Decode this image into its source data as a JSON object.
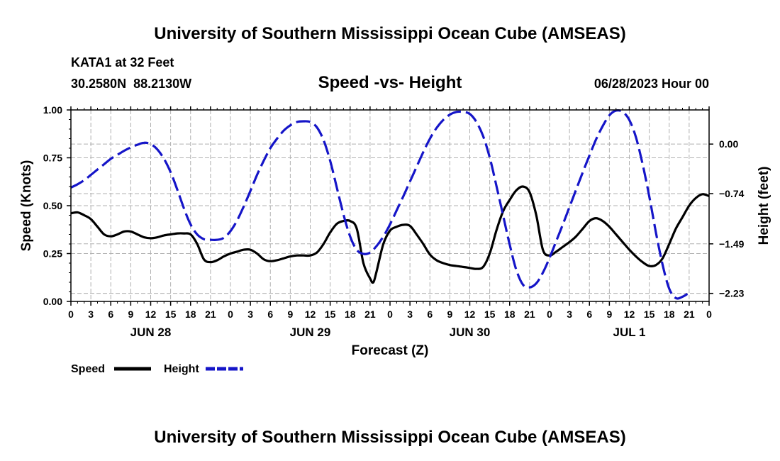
{
  "header": {
    "title": "University of Southern Mississippi Ocean Cube (AMSEAS)",
    "station": "KATA1 at 32 Feet",
    "coords": "30.2580N  88.2130W",
    "subtitle": "Speed -vs- Height",
    "date": "06/28/2023 Hour 00"
  },
  "footer": {
    "title": "University of Southern Mississippi Ocean Cube (AMSEAS)"
  },
  "chart_data": {
    "type": "line",
    "title": "Speed -vs- Height",
    "xlabel": "Forecast (Z)",
    "ylabel": "Speed (Knots)",
    "y2label": "Height (feet)",
    "xlim": [
      0,
      96
    ],
    "ylim": [
      0,
      1
    ],
    "y2lim": [
      -2.35,
      0.51
    ],
    "grid": true,
    "x_ticks": [
      0,
      3,
      6,
      9,
      12,
      15,
      18,
      21,
      24,
      27,
      30,
      33,
      36,
      39,
      42,
      45,
      48,
      51,
      54,
      57,
      60,
      63,
      66,
      69,
      72,
      75,
      78,
      81,
      84,
      87,
      90,
      93,
      96
    ],
    "x_tick_labels": [
      "0",
      "3",
      "6",
      "9",
      "12",
      "15",
      "18",
      "21",
      "0",
      "3",
      "6",
      "9",
      "12",
      "15",
      "18",
      "21",
      "0",
      "3",
      "6",
      "9",
      "12",
      "15",
      "18",
      "21",
      "0",
      "3",
      "6",
      "9",
      "12",
      "15",
      "18",
      "21",
      "0"
    ],
    "date_labels": [
      {
        "x": 12,
        "label": "JUN 28"
      },
      {
        "x": 36,
        "label": "JUN 29"
      },
      {
        "x": 60,
        "label": "JUN 30"
      },
      {
        "x": 84,
        "label": "JUL 1"
      }
    ],
    "y_ticks": [
      0,
      0.25,
      0.5,
      0.75,
      1
    ],
    "y_tick_labels": [
      "0.00",
      "0.25",
      "0.50",
      "0.75",
      "1.00"
    ],
    "y2_ticks": [
      0,
      -0.74,
      -1.49,
      -2.23
    ],
    "y2_tick_labels": [
      "0.00",
      "-0.74",
      "-1.49",
      "-2.23"
    ],
    "legend_position": "bottom-left",
    "series": [
      {
        "name": "Speed",
        "axis": "left",
        "color": "#000000",
        "dash": "solid",
        "points": [
          [
            0,
            0.46
          ],
          [
            1,
            0.465
          ],
          [
            2,
            0.45
          ],
          [
            3,
            0.43
          ],
          [
            4,
            0.39
          ],
          [
            5,
            0.35
          ],
          [
            6,
            0.34
          ],
          [
            7,
            0.35
          ],
          [
            8,
            0.365
          ],
          [
            9,
            0.365
          ],
          [
            10,
            0.35
          ],
          [
            11,
            0.335
          ],
          [
            12,
            0.33
          ],
          [
            13,
            0.335
          ],
          [
            14,
            0.345
          ],
          [
            15,
            0.35
          ],
          [
            16,
            0.355
          ],
          [
            17,
            0.355
          ],
          [
            18,
            0.35
          ],
          [
            19,
            0.3
          ],
          [
            20,
            0.22
          ],
          [
            21,
            0.205
          ],
          [
            22,
            0.215
          ],
          [
            23,
            0.235
          ],
          [
            24,
            0.25
          ],
          [
            25,
            0.26
          ],
          [
            26,
            0.27
          ],
          [
            27,
            0.27
          ],
          [
            28,
            0.25
          ],
          [
            29,
            0.22
          ],
          [
            30,
            0.21
          ],
          [
            31,
            0.215
          ],
          [
            32,
            0.225
          ],
          [
            33,
            0.235
          ],
          [
            34,
            0.24
          ],
          [
            35,
            0.24
          ],
          [
            36,
            0.24
          ],
          [
            37,
            0.255
          ],
          [
            38,
            0.3
          ],
          [
            39,
            0.36
          ],
          [
            40,
            0.405
          ],
          [
            41,
            0.42
          ],
          [
            42,
            0.42
          ],
          [
            43,
            0.38
          ],
          [
            44,
            0.2
          ],
          [
            45,
            0.12
          ],
          [
            45.5,
            0.1
          ],
          [
            46,
            0.16
          ],
          [
            47,
            0.3
          ],
          [
            48,
            0.37
          ],
          [
            49,
            0.39
          ],
          [
            50,
            0.4
          ],
          [
            51,
            0.395
          ],
          [
            52,
            0.35
          ],
          [
            53,
            0.3
          ],
          [
            54,
            0.245
          ],
          [
            55,
            0.215
          ],
          [
            56,
            0.2
          ],
          [
            57,
            0.19
          ],
          [
            58,
            0.185
          ],
          [
            59,
            0.18
          ],
          [
            60,
            0.175
          ],
          [
            61,
            0.17
          ],
          [
            62,
            0.18
          ],
          [
            63,
            0.25
          ],
          [
            64,
            0.37
          ],
          [
            65,
            0.47
          ],
          [
            66,
            0.53
          ],
          [
            67,
            0.58
          ],
          [
            68,
            0.6
          ],
          [
            69,
            0.57
          ],
          [
            70,
            0.45
          ],
          [
            71,
            0.27
          ],
          [
            72,
            0.24
          ],
          [
            73,
            0.26
          ],
          [
            74,
            0.285
          ],
          [
            75,
            0.31
          ],
          [
            76,
            0.34
          ],
          [
            77,
            0.38
          ],
          [
            78,
            0.42
          ],
          [
            79,
            0.435
          ],
          [
            80,
            0.42
          ],
          [
            81,
            0.39
          ],
          [
            82,
            0.35
          ],
          [
            83,
            0.31
          ],
          [
            84,
            0.27
          ],
          [
            85,
            0.235
          ],
          [
            86,
            0.205
          ],
          [
            87,
            0.185
          ],
          [
            88,
            0.19
          ],
          [
            89,
            0.225
          ],
          [
            90,
            0.3
          ],
          [
            91,
            0.38
          ],
          [
            92,
            0.44
          ],
          [
            93,
            0.5
          ],
          [
            94,
            0.54
          ],
          [
            95,
            0.56
          ],
          [
            96,
            0.55
          ]
        ]
      },
      {
        "name": "Height",
        "axis": "right",
        "color": "#1515c8",
        "dash": "dashed",
        "points": [
          [
            0,
            -0.65
          ],
          [
            1,
            -0.6
          ],
          [
            2,
            -0.54
          ],
          [
            3,
            -0.46
          ],
          [
            4,
            -0.38
          ],
          [
            5,
            -0.3
          ],
          [
            6,
            -0.22
          ],
          [
            7,
            -0.16
          ],
          [
            8,
            -0.1
          ],
          [
            9,
            -0.05
          ],
          [
            10,
            -0.01
          ],
          [
            11,
            0.02
          ],
          [
            12,
            0.0
          ],
          [
            13,
            -0.08
          ],
          [
            14,
            -0.22
          ],
          [
            15,
            -0.42
          ],
          [
            16,
            -0.68
          ],
          [
            17,
            -0.96
          ],
          [
            18,
            -1.2
          ],
          [
            19,
            -1.35
          ],
          [
            20,
            -1.42
          ],
          [
            21,
            -1.43
          ],
          [
            22,
            -1.43
          ],
          [
            23,
            -1.4
          ],
          [
            24,
            -1.3
          ],
          [
            25,
            -1.14
          ],
          [
            26,
            -0.93
          ],
          [
            27,
            -0.7
          ],
          [
            28,
            -0.46
          ],
          [
            29,
            -0.25
          ],
          [
            30,
            -0.06
          ],
          [
            31,
            0.08
          ],
          [
            32,
            0.2
          ],
          [
            33,
            0.28
          ],
          [
            34,
            0.33
          ],
          [
            35,
            0.34
          ],
          [
            36,
            0.33
          ],
          [
            37,
            0.25
          ],
          [
            38,
            0.06
          ],
          [
            39,
            -0.25
          ],
          [
            40,
            -0.65
          ],
          [
            41,
            -1.05
          ],
          [
            42,
            -1.38
          ],
          [
            43,
            -1.58
          ],
          [
            44,
            -1.64
          ],
          [
            45,
            -1.62
          ],
          [
            46,
            -1.52
          ],
          [
            47,
            -1.38
          ],
          [
            48,
            -1.2
          ],
          [
            49,
            -0.99
          ],
          [
            50,
            -0.78
          ],
          [
            51,
            -0.56
          ],
          [
            52,
            -0.34
          ],
          [
            53,
            -0.12
          ],
          [
            54,
            0.08
          ],
          [
            55,
            0.24
          ],
          [
            56,
            0.36
          ],
          [
            57,
            0.44
          ],
          [
            58,
            0.48
          ],
          [
            59,
            0.48
          ],
          [
            60,
            0.45
          ],
          [
            61,
            0.33
          ],
          [
            62,
            0.12
          ],
          [
            63,
            -0.2
          ],
          [
            64,
            -0.62
          ],
          [
            65,
            -1.06
          ],
          [
            66,
            -1.5
          ],
          [
            67,
            -1.88
          ],
          [
            68,
            -2.1
          ],
          [
            69,
            -2.14
          ],
          [
            70,
            -2.08
          ],
          [
            71,
            -1.92
          ],
          [
            72,
            -1.7
          ],
          [
            73,
            -1.45
          ],
          [
            74,
            -1.2
          ],
          [
            75,
            -0.94
          ],
          [
            76,
            -0.68
          ],
          [
            77,
            -0.42
          ],
          [
            78,
            -0.17
          ],
          [
            79,
            0.07
          ],
          [
            80,
            0.27
          ],
          [
            81,
            0.43
          ],
          [
            82,
            0.5
          ],
          [
            83,
            0.48
          ],
          [
            84,
            0.36
          ],
          [
            85,
            0.1
          ],
          [
            86,
            -0.3
          ],
          [
            87,
            -0.78
          ],
          [
            88,
            -1.32
          ],
          [
            89,
            -1.8
          ],
          [
            90,
            -2.16
          ],
          [
            91,
            -2.3
          ],
          [
            92,
            -2.28
          ],
          [
            93,
            -2.22
          ]
        ]
      }
    ]
  }
}
